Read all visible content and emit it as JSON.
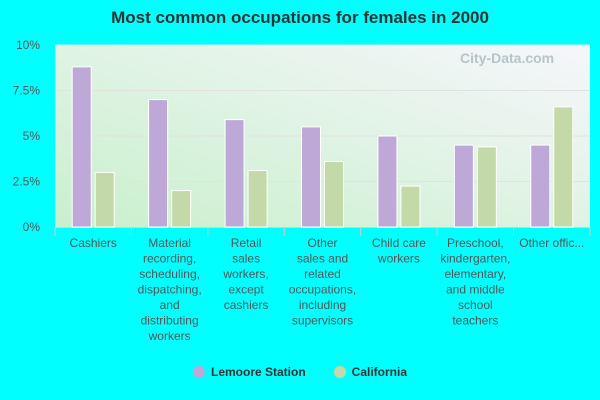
{
  "chart_data": {
    "type": "bar",
    "title": "Most common occupations for females in 2000",
    "categories": [
      [
        "Cashiers"
      ],
      [
        "Material",
        "recording,",
        "scheduling,",
        "dispatching,",
        "and",
        "distributing",
        "workers"
      ],
      [
        "Retail",
        "sales",
        "workers,",
        "except",
        "cashiers"
      ],
      [
        "Other",
        "sales and",
        "related",
        "occupations,",
        "including",
        "supervisors"
      ],
      [
        "Child care",
        "workers"
      ],
      [
        "Preschool,",
        "kindergarten,",
        "elementary,",
        "and middle",
        "school",
        "teachers"
      ],
      [
        "Other offic..."
      ]
    ],
    "series": [
      {
        "name": "Lemoore Station",
        "color": "#bea8d8",
        "values": [
          8.8,
          7.0,
          5.9,
          5.5,
          5.0,
          4.5,
          4.5
        ]
      },
      {
        "name": "California",
        "color": "#c3d9a8",
        "values": [
          3.0,
          2.0,
          3.1,
          3.6,
          2.25,
          4.4,
          6.6
        ]
      }
    ],
    "ylim": [
      0,
      10
    ],
    "yticks": [
      "0%",
      "2.5%",
      "5%",
      "7.5%",
      "10%"
    ],
    "grid": true,
    "legend": "bottom",
    "watermark": "City-Data.com"
  }
}
